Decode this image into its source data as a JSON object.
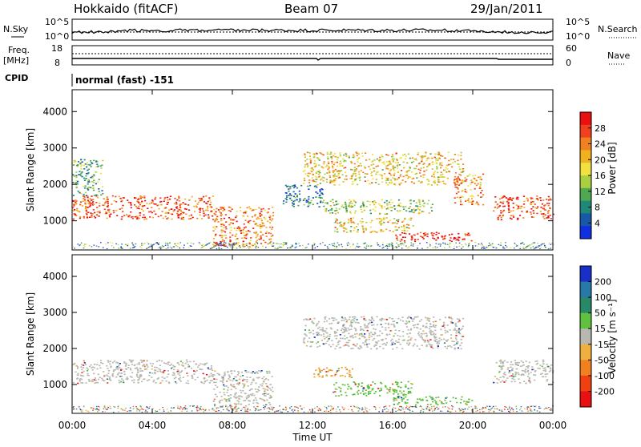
{
  "header": {
    "title": "Hokkaido (fitACF)",
    "beam": "Beam 07",
    "date": "29/Jan/2011"
  },
  "top_panels": {
    "nsky_label": "N.Sky",
    "nsky_ticks_left": [
      "10^5",
      "10^0"
    ],
    "nsearch_label": "N.Search",
    "nsearch_ticks_right": [
      "10^5",
      "10^0"
    ],
    "freq_label": "Freq.",
    "freq_unit": "[MHz]",
    "freq_ticks": [
      "18",
      "8"
    ],
    "nave_label": "Nave",
    "nave_ticks": [
      "60",
      "0"
    ],
    "cpid_label": "CPID",
    "cpid_text": "normal (fast) -151"
  },
  "chart_data": [
    {
      "type": "heatmap",
      "panel": "power",
      "ylabel": "Slant Range [km]",
      "yticks": [
        1000,
        2000,
        3000,
        4000
      ],
      "ylim": [
        200,
        4600
      ],
      "xlim": [
        0,
        24
      ],
      "xticks": [
        "00:00",
        "04:00",
        "08:00",
        "12:00",
        "16:00",
        "20:00",
        "00:00"
      ],
      "colorbar": {
        "label": "Power [dB]",
        "ticks": [
          "28",
          "24",
          "20",
          "16",
          "12",
          "8",
          "4"
        ],
        "colors": [
          "#e81010",
          "#f04020",
          "#f08020",
          "#f0b020",
          "#f0e040",
          "#a8d040",
          "#50a850",
          "#208878",
          "#1858a8",
          "#1030e0"
        ]
      },
      "regions": [
        {
          "t0": 0,
          "t1": 7,
          "r0": 1050,
          "r1": 1700,
          "level": 0.85
        },
        {
          "t0": 0,
          "t1": 1.5,
          "r0": 1700,
          "r1": 2700,
          "level": 0.35
        },
        {
          "t0": 7,
          "t1": 10,
          "r0": 300,
          "r1": 1400,
          "level": 0.75
        },
        {
          "t0": 11.5,
          "t1": 19.5,
          "r0": 2000,
          "r1": 2900,
          "level": 0.6
        },
        {
          "t0": 12.5,
          "t1": 18,
          "r0": 1200,
          "r1": 1600,
          "level": 0.45
        },
        {
          "t0": 13,
          "t1": 17,
          "r0": 700,
          "r1": 1100,
          "level": 0.6
        },
        {
          "t0": 16,
          "t1": 20,
          "r0": 450,
          "r1": 700,
          "level": 0.95
        },
        {
          "t0": 19,
          "t1": 20.5,
          "r0": 1450,
          "r1": 2300,
          "level": 0.7
        },
        {
          "t0": 21,
          "t1": 24,
          "r0": 1050,
          "r1": 1700,
          "level": 0.85
        },
        {
          "t0": 10.5,
          "t1": 12.5,
          "r0": 1400,
          "r1": 2000,
          "level": 0.25
        }
      ]
    },
    {
      "type": "heatmap",
      "panel": "velocity",
      "ylabel": "Slant Range [km]",
      "xlabel": "Time UT",
      "yticks": [
        1000,
        2000,
        3000,
        4000
      ],
      "ylim": [
        200,
        4600
      ],
      "xlim": [
        0,
        24
      ],
      "xticks": [
        "00:00",
        "04:00",
        "08:00",
        "12:00",
        "16:00",
        "20:00",
        "00:00"
      ],
      "colorbar": {
        "label": "Velocity [m s⁻¹]",
        "ticks": [
          "200",
          "100",
          "50",
          "15",
          "-15",
          "-50",
          "-100",
          "-200"
        ],
        "colors": [
          "#1830c8",
          "#2878a8",
          "#288868",
          "#60c040",
          "#b8b8b0",
          "#f0b040",
          "#f08020",
          "#f04010",
          "#e81010"
        ]
      },
      "regions": [
        {
          "t0": 0,
          "t1": 7,
          "r0": 1050,
          "r1": 1700,
          "tone": "ground"
        },
        {
          "t0": 7,
          "t1": 10,
          "r0": 300,
          "r1": 1400,
          "tone": "ground"
        },
        {
          "t0": 11.5,
          "t1": 19.5,
          "r0": 2000,
          "r1": 2900,
          "tone": "ground"
        },
        {
          "t0": 12,
          "t1": 14,
          "r0": 1200,
          "r1": 1500,
          "tone": "orange"
        },
        {
          "t0": 13,
          "t1": 17,
          "r0": 700,
          "r1": 1100,
          "tone": "green"
        },
        {
          "t0": 16,
          "t1": 20,
          "r0": 450,
          "r1": 700,
          "tone": "green"
        },
        {
          "t0": 21,
          "t1": 24,
          "r0": 1050,
          "r1": 1700,
          "tone": "ground"
        }
      ]
    }
  ]
}
